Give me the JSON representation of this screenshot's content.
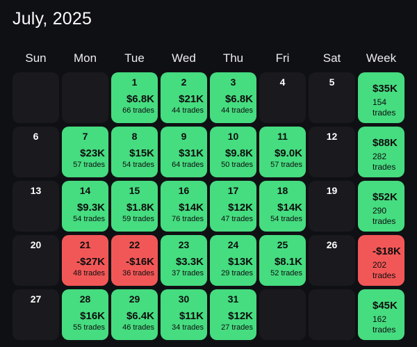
{
  "title": "July, 2025",
  "day_headers": [
    "Sun",
    "Mon",
    "Tue",
    "Wed",
    "Thu",
    "Fri",
    "Sat",
    "Week"
  ],
  "colors": {
    "background": "#0f1014",
    "empty_cell": "#1a1a1e",
    "profit_green": "#46dc80",
    "loss_red": "#f25757",
    "cell_text": "#0d0d0d",
    "header_text": "#ededf0",
    "day_number_on_dark": "#ffffff"
  },
  "weeks": [
    {
      "days": [
        {
          "state": "blank"
        },
        {
          "state": "blank"
        },
        {
          "state": "profit",
          "day": "1",
          "amount": "$6.8K",
          "trades": "66 trades"
        },
        {
          "state": "profit",
          "day": "2",
          "amount": "$21K",
          "trades": "44 trades"
        },
        {
          "state": "profit",
          "day": "3",
          "amount": "$6.8K",
          "trades": "44 trades"
        },
        {
          "state": "noday",
          "day": "4"
        },
        {
          "state": "noday",
          "day": "5"
        }
      ],
      "total": {
        "state": "profit",
        "amount": "$35K",
        "count": "154",
        "label": "trades"
      }
    },
    {
      "days": [
        {
          "state": "noday",
          "day": "6"
        },
        {
          "state": "profit",
          "day": "7",
          "amount": "$23K",
          "trades": "57 trades"
        },
        {
          "state": "profit",
          "day": "8",
          "amount": "$15K",
          "trades": "54 trades"
        },
        {
          "state": "profit",
          "day": "9",
          "amount": "$31K",
          "trades": "64 trades"
        },
        {
          "state": "profit",
          "day": "10",
          "amount": "$9.8K",
          "trades": "50 trades"
        },
        {
          "state": "profit",
          "day": "11",
          "amount": "$9.0K",
          "trades": "57 trades"
        },
        {
          "state": "noday",
          "day": "12"
        }
      ],
      "total": {
        "state": "profit",
        "amount": "$88K",
        "count": "282",
        "label": "trades"
      }
    },
    {
      "days": [
        {
          "state": "noday",
          "day": "13"
        },
        {
          "state": "profit",
          "day": "14",
          "amount": "$9.3K",
          "trades": "54 trades"
        },
        {
          "state": "profit",
          "day": "15",
          "amount": "$1.8K",
          "trades": "59 trades"
        },
        {
          "state": "profit",
          "day": "16",
          "amount": "$14K",
          "trades": "76 trades"
        },
        {
          "state": "profit",
          "day": "17",
          "amount": "$12K",
          "trades": "47 trades"
        },
        {
          "state": "profit",
          "day": "18",
          "amount": "$14K",
          "trades": "54 trades"
        },
        {
          "state": "noday",
          "day": "19"
        }
      ],
      "total": {
        "state": "profit",
        "amount": "$52K",
        "count": "290",
        "label": "trades"
      }
    },
    {
      "days": [
        {
          "state": "noday",
          "day": "20"
        },
        {
          "state": "loss",
          "day": "21",
          "amount": "-$27K",
          "trades": "48 trades"
        },
        {
          "state": "loss",
          "day": "22",
          "amount": "-$16K",
          "trades": "36 trades"
        },
        {
          "state": "profit",
          "day": "23",
          "amount": "$3.3K",
          "trades": "37 trades"
        },
        {
          "state": "profit",
          "day": "24",
          "amount": "$13K",
          "trades": "29 trades"
        },
        {
          "state": "profit",
          "day": "25",
          "amount": "$8.1K",
          "trades": "52 trades"
        },
        {
          "state": "noday",
          "day": "26"
        }
      ],
      "total": {
        "state": "loss",
        "amount": "-$18K",
        "count": "202",
        "label": "trades"
      }
    },
    {
      "days": [
        {
          "state": "noday",
          "day": "27"
        },
        {
          "state": "profit",
          "day": "28",
          "amount": "$16K",
          "trades": "55 trades"
        },
        {
          "state": "profit",
          "day": "29",
          "amount": "$6.4K",
          "trades": "46 trades"
        },
        {
          "state": "profit",
          "day": "30",
          "amount": "$11K",
          "trades": "34 trades"
        },
        {
          "state": "profit",
          "day": "31",
          "amount": "$12K",
          "trades": "27 trades"
        },
        {
          "state": "blank"
        },
        {
          "state": "blank"
        }
      ],
      "total": {
        "state": "profit",
        "amount": "$45K",
        "count": "162",
        "label": "trades"
      }
    }
  ]
}
